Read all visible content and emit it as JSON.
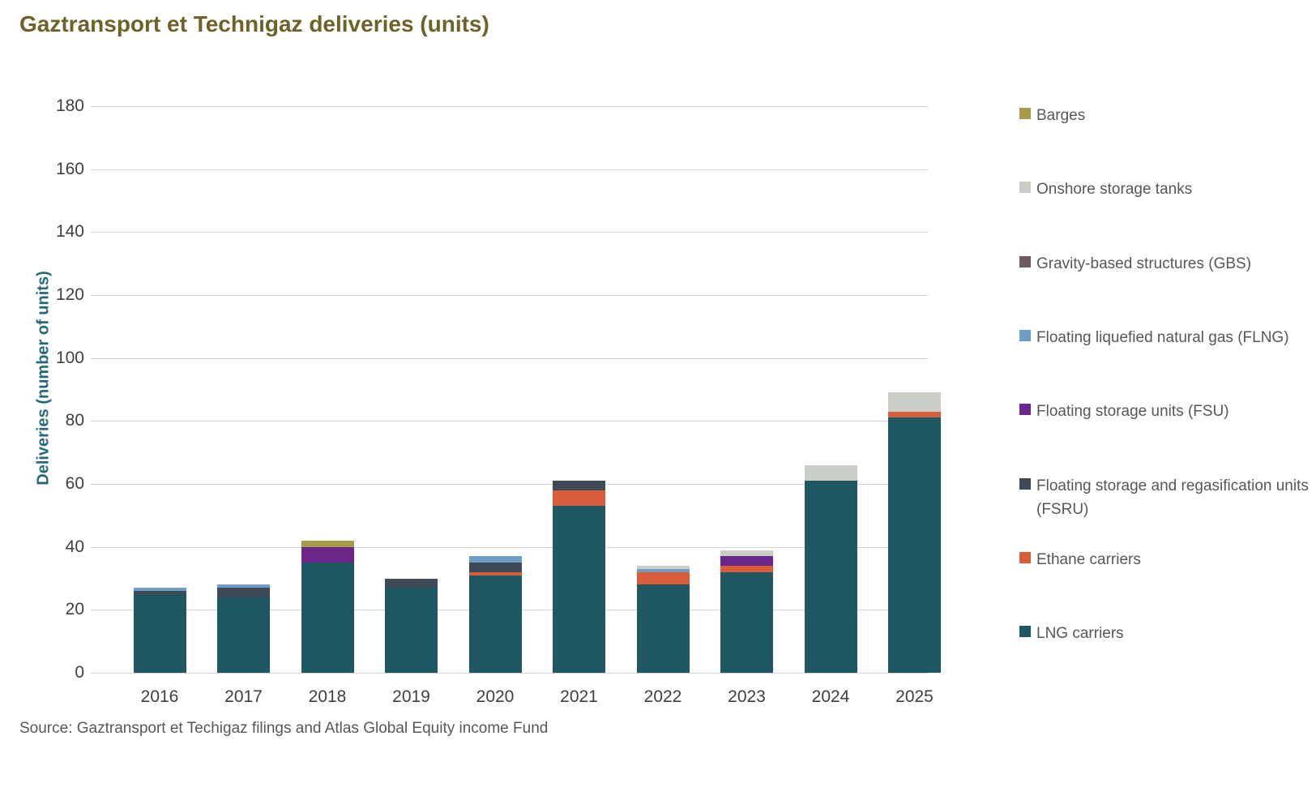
{
  "page": {
    "title": "Gaztransport et Technigaz deliveries (units)",
    "source": "Source: Gaztransport et Techigaz filings and Atlas Global Equity income Fund"
  },
  "colors": {
    "title": "#6f6228",
    "axis_label": "#24697a",
    "tick_text": "#3f3f3f",
    "legend_text": "#575757",
    "gridline": "#d4d4d4"
  },
  "chart_data": {
    "type": "bar",
    "stacked": true,
    "title": "Gaztransport et Technigaz deliveries (units)",
    "xlabel": "",
    "ylabel": "Deliveries (number of units)",
    "ylim": [
      0,
      180
    ],
    "ytick_step": 20,
    "yticks": [
      0,
      20,
      40,
      60,
      80,
      100,
      120,
      140,
      160,
      180
    ],
    "grid": true,
    "legend_position": "right",
    "categories": [
      "2016",
      "2017",
      "2018",
      "2019",
      "2020",
      "2021",
      "2022",
      "2023",
      "2024",
      "2025"
    ],
    "series": [
      {
        "name": "LNG carriers",
        "color": "#1f5863",
        "values": [
          25,
          24,
          35,
          27,
          31,
          53,
          28,
          32,
          61,
          81
        ]
      },
      {
        "name": "Ethane carriers",
        "color": "#d85d3a",
        "values": [
          0,
          0,
          0,
          0,
          1,
          5,
          4,
          2,
          0,
          2
        ]
      },
      {
        "name": "Floating storage and regasification units (FSRU)",
        "color": "#3e4a55",
        "values": [
          1,
          3,
          0,
          3,
          3,
          3,
          0,
          0,
          0,
          0
        ]
      },
      {
        "name": "Floating storage units (FSU)",
        "color": "#6a2689",
        "values": [
          0,
          0,
          5,
          0,
          0,
          0,
          0,
          3,
          0,
          0
        ]
      },
      {
        "name": "Floating liquefied natural gas (FLNG)",
        "color": "#6f9dc6",
        "values": [
          1,
          1,
          0,
          0,
          2,
          0,
          1,
          0,
          0,
          0
        ]
      },
      {
        "name": "Gravity-based structures (GBS)",
        "color": "#6d5a63",
        "values": [
          0,
          0,
          0,
          0,
          0,
          0,
          0,
          0,
          0,
          0
        ]
      },
      {
        "name": "Onshore storage tanks",
        "color": "#c9cfc7",
        "values": [
          0,
          0,
          0,
          0,
          0,
          0,
          1,
          2,
          5,
          6
        ]
      },
      {
        "name": "Barges",
        "color": "#a69b49",
        "values": [
          0,
          0,
          2,
          0,
          0,
          0,
          0,
          0,
          0,
          0
        ]
      }
    ],
    "totals": [
      27,
      28,
      42,
      30,
      37,
      61,
      34,
      39,
      66,
      89
    ]
  }
}
